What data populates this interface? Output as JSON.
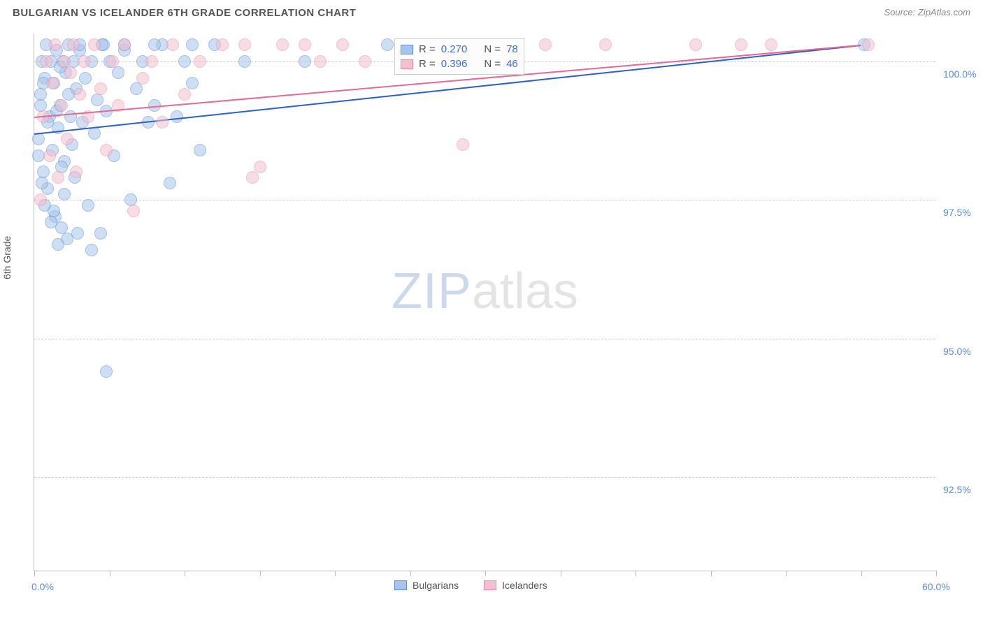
{
  "header": {
    "title": "BULGARIAN VS ICELANDER 6TH GRADE CORRELATION CHART",
    "source": "Source: ZipAtlas.com"
  },
  "chart": {
    "type": "scatter",
    "yaxis_label": "6th Grade",
    "background_color": "#ffffff",
    "grid_color": "#cccccc",
    "axis_color": "#bbbbbb",
    "label_color": "#5b8dd6",
    "title_fontsize": 15,
    "label_fontsize": 14,
    "xlim": [
      0,
      60
    ],
    "ylim": [
      90.8,
      100.5
    ],
    "xtick_positions": [
      0,
      5,
      10,
      15,
      20,
      25,
      30,
      35,
      40,
      45,
      50,
      55,
      60
    ],
    "xtick_labels": {
      "0": "0.0%",
      "60": "60.0%"
    },
    "ytick_positions": [
      92.5,
      95.0,
      97.5,
      100.0
    ],
    "ytick_labels": [
      "92.5%",
      "95.0%",
      "97.5%",
      "100.0%"
    ],
    "marker_radius": 9,
    "marker_opacity": 0.55,
    "series": [
      {
        "name": "Bulgarians",
        "fill": "#a7c5ec",
        "stroke": "#5b8dd6",
        "line_color": "#2e5fc9",
        "R": "0.270",
        "N": "78",
        "trend": {
          "x1": 0,
          "y1": 98.7,
          "x2": 55,
          "y2": 100.3
        },
        "points": [
          [
            0.3,
            98.6
          ],
          [
            0.4,
            99.4
          ],
          [
            0.5,
            100.0
          ],
          [
            0.6,
            98.0
          ],
          [
            0.7,
            99.7
          ],
          [
            0.8,
            100.3
          ],
          [
            0.9,
            97.7
          ],
          [
            1.0,
            99.0
          ],
          [
            1.1,
            100.0
          ],
          [
            1.2,
            98.4
          ],
          [
            1.3,
            99.6
          ],
          [
            1.4,
            97.2
          ],
          [
            1.5,
            100.2
          ],
          [
            1.6,
            98.8
          ],
          [
            1.7,
            99.2
          ],
          [
            1.8,
            97.0
          ],
          [
            1.9,
            100.0
          ],
          [
            2.0,
            98.2
          ],
          [
            2.1,
            99.8
          ],
          [
            2.2,
            96.8
          ],
          [
            2.3,
            100.3
          ],
          [
            2.4,
            99.0
          ],
          [
            2.5,
            98.5
          ],
          [
            2.6,
            100.0
          ],
          [
            2.7,
            97.9
          ],
          [
            2.8,
            99.5
          ],
          [
            2.9,
            96.9
          ],
          [
            3.0,
            100.2
          ],
          [
            3.2,
            98.9
          ],
          [
            3.4,
            99.7
          ],
          [
            3.6,
            97.4
          ],
          [
            3.8,
            100.0
          ],
          [
            4.0,
            98.7
          ],
          [
            4.2,
            99.3
          ],
          [
            4.4,
            96.9
          ],
          [
            4.6,
            100.3
          ],
          [
            4.8,
            99.1
          ],
          [
            5.0,
            100.0
          ],
          [
            5.3,
            98.3
          ],
          [
            5.6,
            99.8
          ],
          [
            6.0,
            100.2
          ],
          [
            6.4,
            97.5
          ],
          [
            6.8,
            99.5
          ],
          [
            7.2,
            100.0
          ],
          [
            7.6,
            98.9
          ],
          [
            8.0,
            99.2
          ],
          [
            8.5,
            100.3
          ],
          [
            9.0,
            97.8
          ],
          [
            9.5,
            99.0
          ],
          [
            10.0,
            100.0
          ],
          [
            10.5,
            99.6
          ],
          [
            11.0,
            98.4
          ],
          [
            4.8,
            94.4
          ],
          [
            1.1,
            97.1
          ],
          [
            1.6,
            96.7
          ],
          [
            3.8,
            96.6
          ],
          [
            0.7,
            97.4
          ],
          [
            1.3,
            97.3
          ],
          [
            2.0,
            97.6
          ],
          [
            0.5,
            97.8
          ],
          [
            1.8,
            98.1
          ],
          [
            0.3,
            98.3
          ],
          [
            0.9,
            98.9
          ],
          [
            1.5,
            99.1
          ],
          [
            0.4,
            99.2
          ],
          [
            2.3,
            99.4
          ],
          [
            0.6,
            99.6
          ],
          [
            1.7,
            99.9
          ],
          [
            3.0,
            100.3
          ],
          [
            4.5,
            100.3
          ],
          [
            6.0,
            100.3
          ],
          [
            8.0,
            100.3
          ],
          [
            10.5,
            100.3
          ],
          [
            12.0,
            100.3
          ],
          [
            14.0,
            100.0
          ],
          [
            18.0,
            100.0
          ],
          [
            23.5,
            100.3
          ],
          [
            55.2,
            100.3
          ]
        ]
      },
      {
        "name": "Icelanders",
        "fill": "#f2c0cf",
        "stroke": "#e88fab",
        "line_color": "#e36a92",
        "R": "0.396",
        "N": "46",
        "trend": {
          "x1": 0,
          "y1": 99.0,
          "x2": 55,
          "y2": 100.3
        },
        "points": [
          [
            0.4,
            97.5
          ],
          [
            0.6,
            99.0
          ],
          [
            0.8,
            100.0
          ],
          [
            1.0,
            98.3
          ],
          [
            1.2,
            99.6
          ],
          [
            1.4,
            100.3
          ],
          [
            1.6,
            97.9
          ],
          [
            1.8,
            99.2
          ],
          [
            2.0,
            100.0
          ],
          [
            2.2,
            98.6
          ],
          [
            2.4,
            99.8
          ],
          [
            2.6,
            100.3
          ],
          [
            2.8,
            98.0
          ],
          [
            3.0,
            99.4
          ],
          [
            3.3,
            100.0
          ],
          [
            3.6,
            99.0
          ],
          [
            4.0,
            100.3
          ],
          [
            4.4,
            99.5
          ],
          [
            4.8,
            98.4
          ],
          [
            5.2,
            100.0
          ],
          [
            5.6,
            99.2
          ],
          [
            6.0,
            100.3
          ],
          [
            6.6,
            97.3
          ],
          [
            7.2,
            99.7
          ],
          [
            7.8,
            100.0
          ],
          [
            8.5,
            98.9
          ],
          [
            9.2,
            100.3
          ],
          [
            10.0,
            99.4
          ],
          [
            11.0,
            100.0
          ],
          [
            12.5,
            100.3
          ],
          [
            14.0,
            100.3
          ],
          [
            15.0,
            98.1
          ],
          [
            16.5,
            100.3
          ],
          [
            18.0,
            100.3
          ],
          [
            19.0,
            100.0
          ],
          [
            20.5,
            100.3
          ],
          [
            22.0,
            100.0
          ],
          [
            14.5,
            97.9
          ],
          [
            28.5,
            98.5
          ],
          [
            30.0,
            100.3
          ],
          [
            34.0,
            100.3
          ],
          [
            38.0,
            100.3
          ],
          [
            44.0,
            100.3
          ],
          [
            47.0,
            100.3
          ],
          [
            49.0,
            100.3
          ],
          [
            55.5,
            100.3
          ]
        ]
      }
    ],
    "watermark": {
      "part1": "ZIP",
      "part2": "atlas"
    },
    "legend": {
      "items": [
        "Bulgarians",
        "Icelanders"
      ]
    },
    "stats_labels": {
      "R": "R =",
      "N": "N ="
    }
  }
}
